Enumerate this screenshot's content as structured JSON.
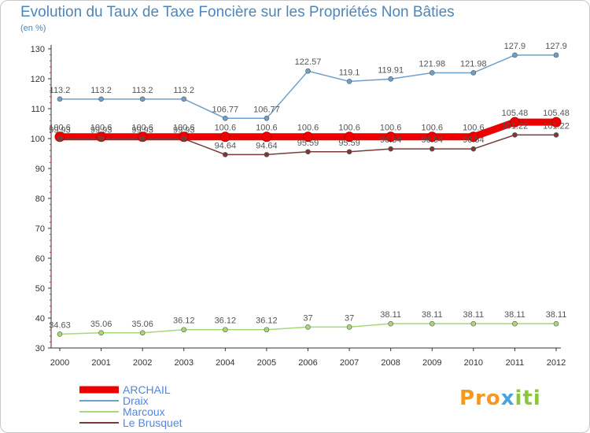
{
  "title": "Evolution du Taux de Taxe Foncière sur les Propriétés Non Bâties",
  "unit": "(en %)",
  "logo": "Proxiti",
  "chart_data": {
    "type": "line",
    "title": "Evolution du Taux de Taxe Foncière sur les Propriétés Non Bâties",
    "ylabel": "(en %)",
    "x": [
      "2000",
      "2001",
      "2002",
      "2003",
      "2004",
      "2005",
      "2006",
      "2007",
      "2008",
      "2009",
      "2010",
      "2011",
      "2012"
    ],
    "ylim": [
      30,
      130
    ],
    "yticks": [
      30,
      40,
      50,
      60,
      70,
      80,
      90,
      100,
      110,
      120,
      130
    ],
    "grid": false,
    "legend_position": "bottom-left",
    "series": [
      {
        "name": "ARCHAIL",
        "color": "#ee0000",
        "values": [
          100.6,
          100.6,
          100.6,
          100.6,
          100.6,
          100.6,
          100.6,
          100.6,
          100.6,
          100.6,
          100.6,
          105.48,
          105.48
        ],
        "labels": [
          "100.6",
          "100.6",
          "100.6",
          "100.6",
          "100.6",
          "100.6",
          "100.6",
          "100.6",
          "100.6",
          "100.6",
          "100.6",
          "105.48",
          "105.48"
        ]
      },
      {
        "name": "Draix",
        "color": "#6fa0cc",
        "values": [
          113.2,
          113.2,
          113.2,
          113.2,
          106.77,
          106.77,
          122.57,
          119.1,
          119.91,
          121.98,
          121.98,
          127.9,
          127.9
        ],
        "labels": [
          "113.2",
          "113.2",
          "113.2",
          "113.2",
          "106.77",
          "106.77",
          "122.57",
          "119.1",
          "119.91",
          "121.98",
          "121.98",
          "127.9",
          "127.9"
        ]
      },
      {
        "name": "Marcoux",
        "color": "#a8d878",
        "values": [
          34.63,
          35.06,
          35.06,
          36.12,
          36.12,
          36.12,
          37,
          37,
          38.11,
          38.11,
          38.11,
          38.11,
          38.11
        ],
        "labels": [
          "34.63",
          "35.06",
          "35.06",
          "36.12",
          "36.12",
          "36.12",
          "37",
          "37",
          "38.11",
          "38.11",
          "38.11",
          "38.11",
          "38.11"
        ]
      },
      {
        "name": "Le Brusquet",
        "color": "#7a3a3a",
        "values": [
          99.93,
          99.93,
          99.93,
          99.93,
          94.64,
          94.64,
          95.59,
          95.59,
          96.54,
          96.54,
          96.54,
          101.22,
          101.22
        ],
        "labels": [
          "99.93",
          "99.93",
          "99.93",
          "99.93",
          "94.64",
          "94.64",
          "95.59",
          "95.59",
          "96.54",
          "96.54",
          "96.54",
          "101.22",
          "101.22"
        ]
      }
    ]
  }
}
